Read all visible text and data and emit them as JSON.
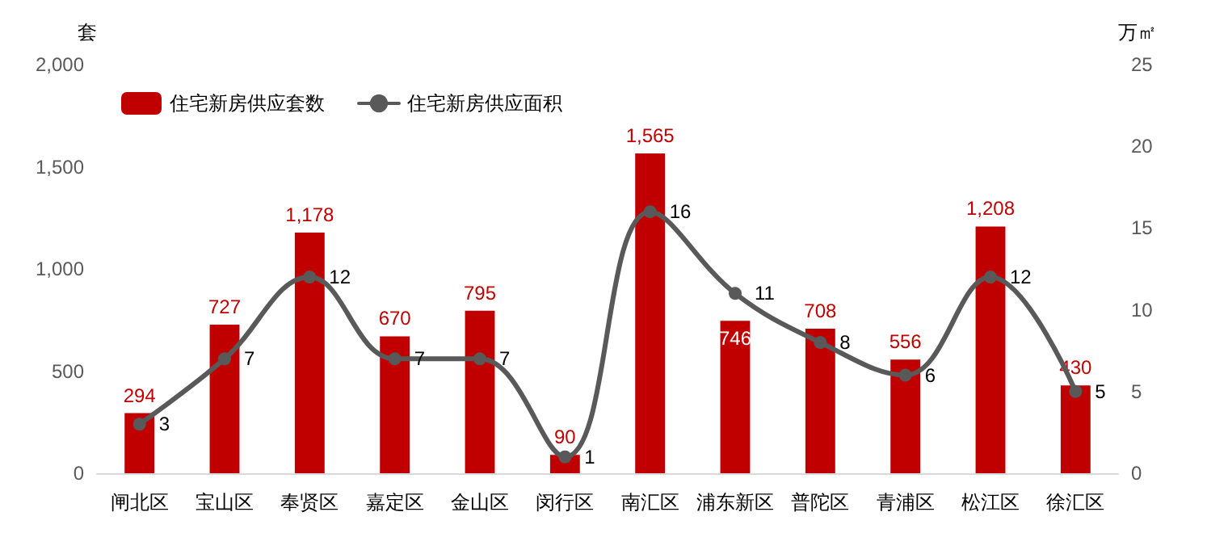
{
  "chart_data": {
    "type": "bar",
    "categories": [
      "闸北区",
      "宝山区",
      "奉贤区",
      "嘉定区",
      "金山区",
      "闵行区",
      "南汇区",
      "浦东新区",
      "普陀区",
      "青浦区",
      "松江区",
      "徐汇区"
    ],
    "series": [
      {
        "name": "住宅新房供应套数",
        "color": "#c00000",
        "values": [
          294,
          727,
          1178,
          670,
          795,
          90,
          1565,
          746,
          708,
          556,
          1208,
          430
        ],
        "value_labels": [
          "294",
          "727",
          "1,178",
          "670",
          "795",
          "90",
          "1,565",
          "746",
          "708",
          "556",
          "1,208",
          "430"
        ]
      },
      {
        "name": "住宅新房供应面积",
        "type": "line",
        "axis": "y2",
        "color": "#595959",
        "values": [
          3,
          7,
          12,
          7,
          7,
          1,
          16,
          11,
          8,
          6,
          12,
          5
        ],
        "data_labels": true
      }
    ],
    "ylabel": "套",
    "y2label": "万㎡",
    "ylim": [
      0,
      2000
    ],
    "yticks": [
      0,
      500,
      {
        "value": 1000,
        "label": "1,000"
      },
      {
        "value": 1500,
        "label": "1,500"
      },
      {
        "value": 2000,
        "label": "2,000"
      }
    ],
    "y2lim": [
      0,
      25
    ],
    "y2ticks": [
      0,
      5,
      10,
      15,
      20,
      25
    ],
    "legend": "top left",
    "marker": "circle",
    "line_style": "solid",
    "grid": false
  }
}
